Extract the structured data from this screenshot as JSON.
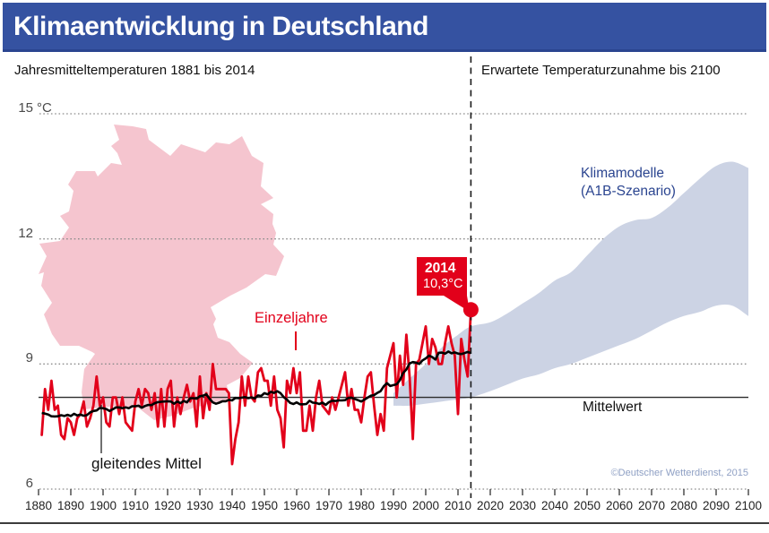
{
  "header": {
    "title": "Klimaentwicklung in Deutschland"
  },
  "subtitle_left": "Jahresmitteltemperaturen 1881 bis 2014",
  "subtitle_right": "Erwartete Temperaturzunahme bis 2100",
  "annotations": {
    "einzeljahre": "Einzeljahre",
    "gleitendes_mittel": "gleitendes Mittel",
    "mittelwert": "Mittelwert",
    "klimamodelle": [
      "Klimamodelle",
      "(A1B-Szenario)"
    ],
    "callout_year": "2014",
    "callout_value": "10,3°C"
  },
  "copyright": "©Deutscher Wetterdienst, 2015",
  "colors": {
    "header_bg": "#3552a1",
    "header_border": "#2a4590",
    "red": "#e2001a",
    "map_pink": "#f5c5cf",
    "band_blue": "#ccd3e4",
    "dark_blue_text": "#2b4590",
    "copyright_text": "#8fa0c4",
    "grid": "#8c8c8c",
    "axis_text": "#222222"
  },
  "chart_data": {
    "type": "line",
    "title": "Klimaentwicklung in Deutschland",
    "x_axis": {
      "range": [
        1880,
        2100
      ],
      "tick_step": 10,
      "ticks": [
        1880,
        1890,
        1900,
        1910,
        1920,
        1930,
        1940,
        1950,
        1960,
        1970,
        1980,
        1990,
        2000,
        2010,
        2020,
        2030,
        2040,
        2050,
        2060,
        2070,
        2080,
        2090,
        2100
      ]
    },
    "y_axis": {
      "unit": "°C",
      "ticks": [
        15,
        12,
        9,
        6
      ],
      "range": [
        6,
        15
      ],
      "grid": "dotted"
    },
    "mittelwert_value": 8.2,
    "projection_divider_year": 2014,
    "highlight": {
      "year": 2014,
      "value": 10.3,
      "label": "2014",
      "value_label": "10,3°C"
    },
    "observed": {
      "name": "Einzeljahre",
      "start_year": 1881,
      "end_year": 2014,
      "unit": "°C",
      "values": [
        7.3,
        8.4,
        7.9,
        8.6,
        7.9,
        8.0,
        7.3,
        7.2,
        7.7,
        7.6,
        7.3,
        7.7,
        7.8,
        8.1,
        7.5,
        7.7,
        8.0,
        8.7,
        8.0,
        8.2,
        7.6,
        7.5,
        8.2,
        8.2,
        7.8,
        8.2,
        7.6,
        7.5,
        7.4,
        8.1,
        8.4,
        8.0,
        8.4,
        8.3,
        7.9,
        8.3,
        7.5,
        8.4,
        7.5,
        8.4,
        8.6,
        7.5,
        8.2,
        7.8,
        8.2,
        8.5,
        8.1,
        8.3,
        7.5,
        8.7,
        7.7,
        8.3,
        7.9,
        9.0,
        8.4,
        8.4,
        8.4,
        8.4,
        8.3,
        6.6,
        7.2,
        7.6,
        8.7,
        8.0,
        8.7,
        8.2,
        8.1,
        8.8,
        8.9,
        8.6,
        8.6,
        8.0,
        8.7,
        7.9,
        7.7,
        7.0,
        8.6,
        8.3,
        8.9,
        8.3,
        8.8,
        7.4,
        7.4,
        8.0,
        7.4,
        8.2,
        8.6,
        8.0,
        7.9,
        7.8,
        8.2,
        7.9,
        8.2,
        8.5,
        8.8,
        8.0,
        8.4,
        7.9,
        7.9,
        7.6,
        8.2,
        8.7,
        8.8,
        8.0,
        7.3,
        7.8,
        7.4,
        8.9,
        9.2,
        9.5,
        8.2,
        9.2,
        8.5,
        9.7,
        8.7,
        7.2,
        9.0,
        9.1,
        9.5,
        9.9,
        9.0,
        9.6,
        9.4,
        9.0,
        9.0,
        9.5,
        9.9,
        9.5,
        9.2,
        7.8,
        9.6,
        9.1,
        8.7,
        10.3
      ]
    },
    "smoothed": {
      "name": "gleitendes Mittel",
      "method": "centered moving average",
      "window": 15
    },
    "projection": {
      "name": "Klimamodelle (A1B-Szenario)",
      "years": [
        1990,
        1995,
        2000,
        2005,
        2010,
        2014,
        2020,
        2025,
        2030,
        2035,
        2040,
        2045,
        2050,
        2055,
        2060,
        2065,
        2070,
        2075,
        2080,
        2085,
        2090,
        2095,
        2100
      ],
      "lower": [
        8.0,
        8.0,
        8.05,
        8.1,
        8.15,
        8.2,
        8.35,
        8.5,
        8.65,
        8.75,
        8.9,
        9.0,
        9.15,
        9.3,
        9.45,
        9.6,
        9.8,
        10.0,
        10.15,
        10.25,
        10.4,
        10.4,
        10.15
      ],
      "upper": [
        8.3,
        8.65,
        9.0,
        9.4,
        9.7,
        9.9,
        10.0,
        10.2,
        10.45,
        10.7,
        11.0,
        11.2,
        11.6,
        12.0,
        12.3,
        12.45,
        12.5,
        12.75,
        13.1,
        13.45,
        13.75,
        13.85,
        13.7
      ]
    }
  }
}
